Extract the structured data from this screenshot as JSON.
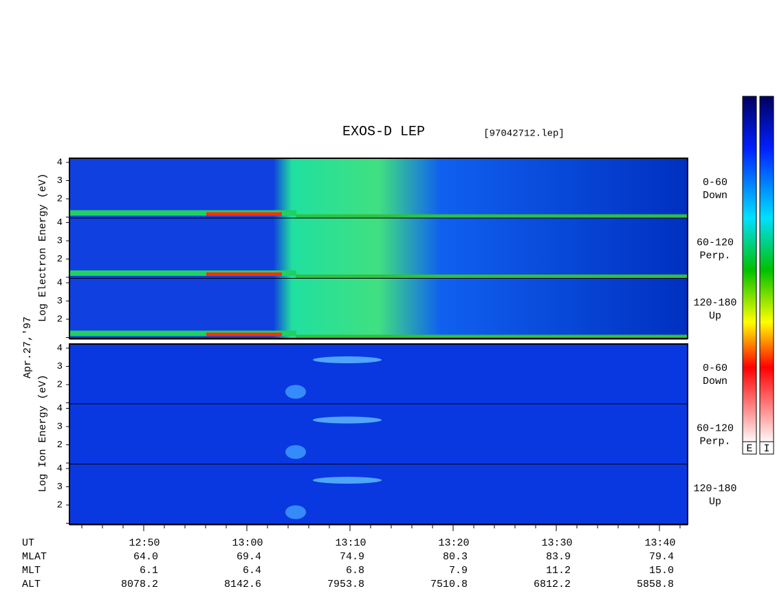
{
  "title": "EXOS-D LEP",
  "file": "[97042712.lep]",
  "date": "Apr.27,'97",
  "electron": {
    "axis_label": "Log Electron Energy (eV)",
    "panels": [
      {
        "range": "0-60",
        "dir": "Down"
      },
      {
        "range": "60-120",
        "dir": "Perp."
      },
      {
        "range": "120-180",
        "dir": "Up"
      }
    ]
  },
  "ion": {
    "axis_label": "Log Ion Energy (eV)",
    "panels": [
      {
        "range": "0-60",
        "dir": "Down"
      },
      {
        "range": "60-120",
        "dir": "Perp."
      },
      {
        "range": "120-180",
        "dir": "Up"
      }
    ]
  },
  "yticks": [
    "4",
    "3",
    "2"
  ],
  "time_axis": {
    "rows": [
      {
        "name": "UT",
        "values": [
          "12:50",
          "13:00",
          "13:10",
          "13:20",
          "13:30",
          "13:40"
        ]
      },
      {
        "name": "MLAT",
        "values": [
          "64.0",
          "69.4",
          "74.9",
          "80.3",
          "83.9",
          "79.4"
        ]
      },
      {
        "name": "MLT",
        "values": [
          "6.1",
          "6.4",
          "6.8",
          "7.9",
          "11.2",
          "15.0"
        ]
      },
      {
        "name": "ALT",
        "values": [
          "8078.2",
          "8142.6",
          "7953.8",
          "7510.8",
          "6812.2",
          "5858.8"
        ]
      }
    ]
  },
  "colorbars": [
    "E",
    "I"
  ]
}
